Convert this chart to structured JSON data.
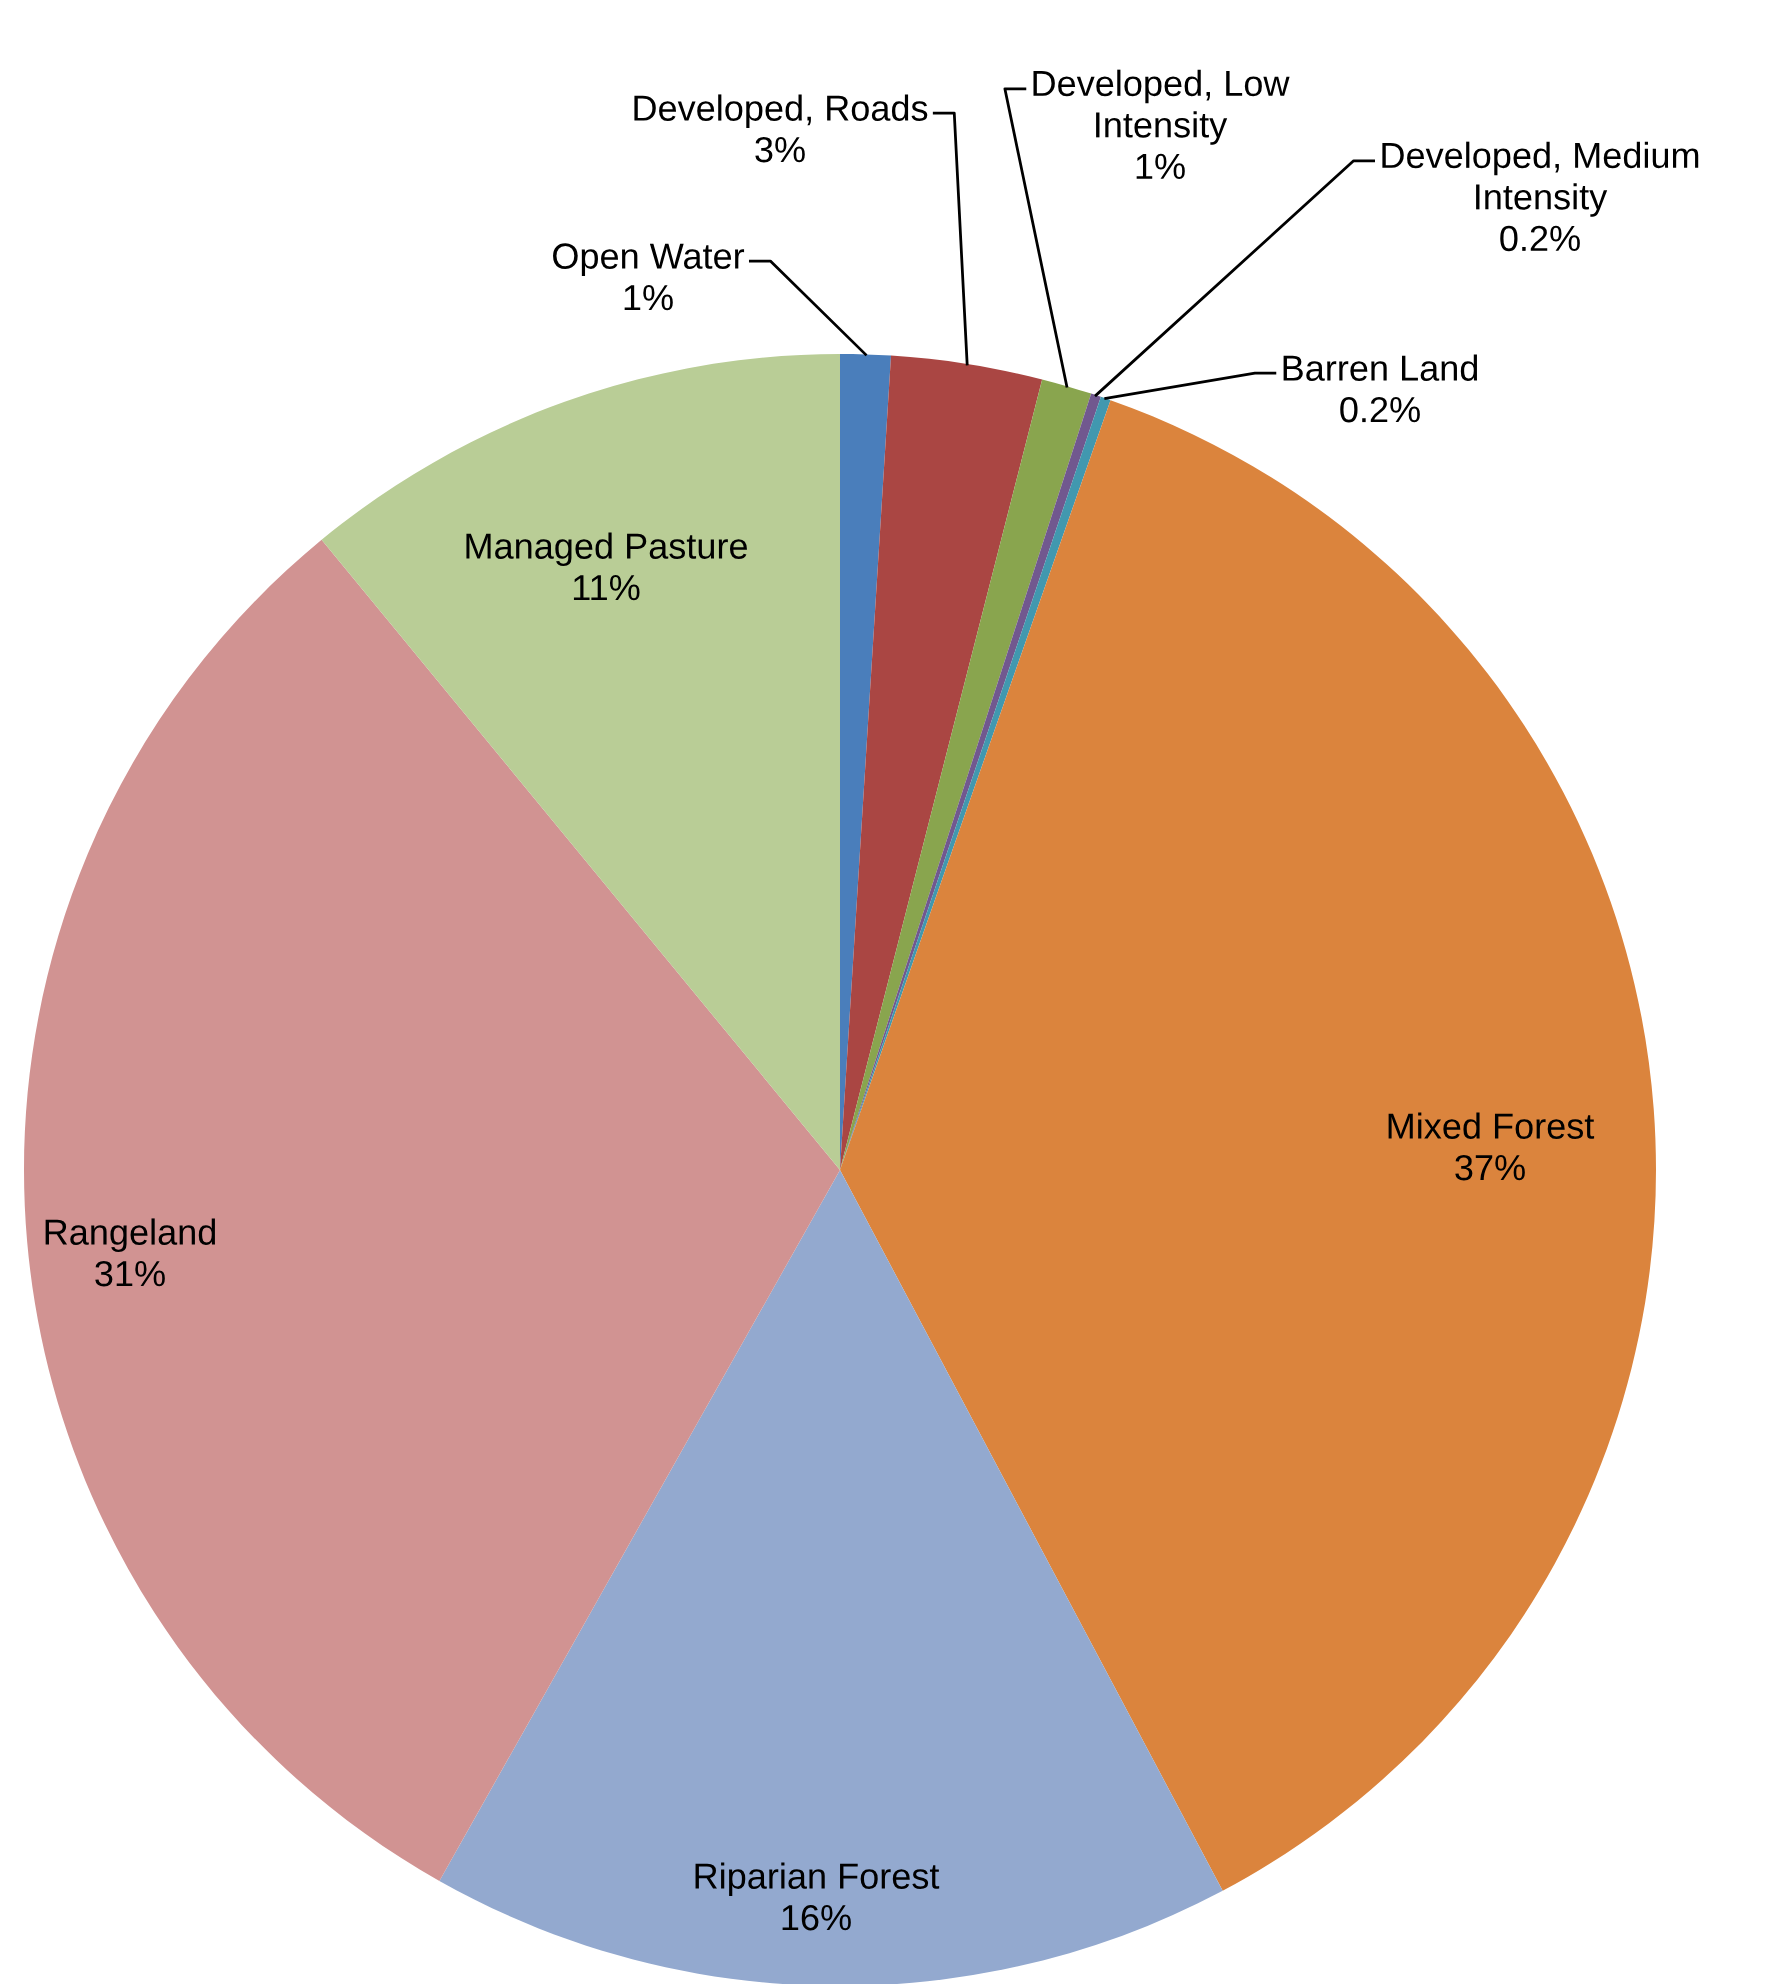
{
  "chart_data": {
    "type": "pie",
    "categories": [
      "Open Water",
      "Developed, Roads",
      "Developed, Low Intensity",
      "Developed, Medium Intensity",
      "Barren Land",
      "Mixed Forest",
      "Riparian Forest",
      "Rangeland",
      "Managed Pasture"
    ],
    "values": [
      1,
      3,
      1,
      0.2,
      0.2,
      37,
      16,
      31,
      11
    ],
    "value_labels": [
      "1%",
      "3%",
      "1%",
      "0.2%",
      "0.2%",
      "37%",
      "16%",
      "31%",
      "11%"
    ],
    "colors": [
      "#4a7ebb",
      "#aa4643",
      "#89a54e",
      "#71588f",
      "#4198af",
      "#db843d",
      "#93a9cf",
      "#d19392",
      "#b9cd96"
    ]
  }
}
